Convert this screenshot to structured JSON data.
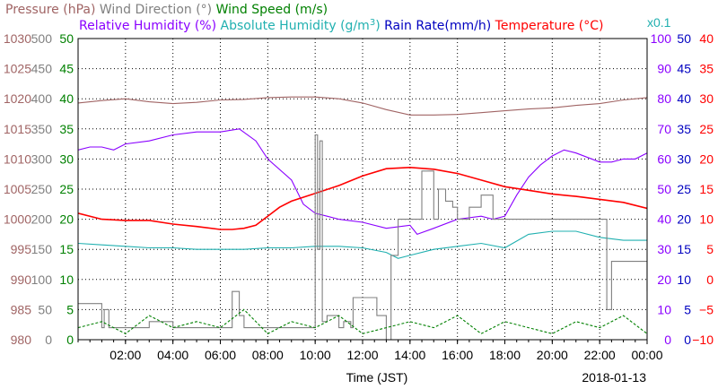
{
  "chart_data": {
    "type": "line",
    "date": "2018-01-13",
    "xlabel": "Time (JST)",
    "x_ticks": [
      "02:00",
      "04:00",
      "06:00",
      "08:00",
      "10:00",
      "12:00",
      "14:00",
      "16:00",
      "18:00",
      "20:00",
      "22:00",
      "00:00"
    ],
    "x_range_hours": [
      0,
      24
    ],
    "grid": true,
    "legend": [
      {
        "text": "Pressure (hPa)",
        "color": "#a06464"
      },
      {
        "text": "Wind Direction (°)",
        "color": "#808080"
      },
      {
        "text": "Wind Speed (m/s)",
        "color": "#008000"
      },
      {
        "text": "Relative Humidity (%)",
        "color": "#8a00ff"
      },
      {
        "text": "Absolute Humidity (g/m",
        "sup": "3",
        "tail": ")",
        "color": "#20b0b0"
      },
      {
        "text": "Rain Rate(mm/h)",
        "color": "#0000c0"
      },
      {
        "text": "Temperature (°C)",
        "color": "#ff0000"
      }
    ],
    "abs_humidity_scale_note": "x0.1",
    "axes": {
      "pressure": {
        "color": "#a06464",
        "min": 980,
        "max": 1030,
        "ticks": [
          1030,
          1025,
          1020,
          1015,
          1010,
          1005,
          1000,
          995,
          990,
          985,
          980
        ]
      },
      "wind_direction": {
        "color": "#808080",
        "min": 0,
        "max": 500,
        "ticks": [
          500,
          450,
          400,
          350,
          300,
          250,
          200,
          150,
          100,
          50,
          0
        ]
      },
      "wind_speed": {
        "color": "#008000",
        "min": 0,
        "max": 50,
        "ticks": [
          50,
          45,
          40,
          35,
          30,
          25,
          20,
          15,
          10,
          5,
          0
        ]
      },
      "relative_humidity": {
        "color": "#8a00ff",
        "min": 0,
        "max": 100,
        "ticks": [
          100,
          90,
          80,
          70,
          60,
          50,
          40,
          30,
          20,
          10,
          0
        ]
      },
      "rain_rate": {
        "color": "#0000c0",
        "min": 0,
        "max": 50,
        "ticks": [
          50,
          45,
          40,
          35,
          30,
          25,
          20,
          15,
          10,
          5,
          0
        ]
      },
      "temperature": {
        "color": "#ff0000",
        "min": -10,
        "max": 40,
        "ticks": [
          "40",
          "35",
          "30",
          "25",
          "20",
          "15",
          "10",
          "5",
          "0",
          "−5",
          "−10"
        ]
      }
    },
    "series": [
      {
        "name": "Pressure",
        "color": "#a06464",
        "axis": "pressure",
        "x": [
          0,
          1,
          2,
          3,
          4,
          5,
          6,
          7,
          8,
          9,
          10,
          11,
          12,
          13,
          14,
          15,
          16,
          17,
          18,
          19,
          20,
          21,
          22,
          23,
          24
        ],
        "y": [
          1019.3,
          1019.7,
          1020,
          1019.5,
          1019.2,
          1019.4,
          1019.8,
          1019.9,
          1020.2,
          1020.3,
          1020.3,
          1020,
          1019.3,
          1018.2,
          1017.3,
          1017.3,
          1017.4,
          1017.7,
          1018,
          1018.3,
          1018.5,
          1018.9,
          1019.2,
          1019.8,
          1020.2
        ]
      },
      {
        "name": "Relative Humidity",
        "color": "#8a00ff",
        "axis": "relative_humidity",
        "x": [
          0,
          0.5,
          1,
          1.5,
          2,
          3,
          4,
          5,
          6,
          6.8,
          7.5,
          8,
          9,
          9.5,
          10,
          10.5,
          11,
          12,
          13,
          14,
          14.3,
          15,
          16,
          17,
          17.5,
          18,
          18.5,
          19,
          19.5,
          20,
          20.5,
          21,
          22,
          22.5,
          23,
          23.5,
          24
        ],
        "y": [
          63,
          64,
          64,
          63,
          65,
          66,
          68,
          69,
          69,
          70,
          66,
          60,
          53,
          45,
          42,
          41,
          40,
          39,
          37,
          38,
          35,
          37,
          40,
          41,
          40,
          41,
          48,
          54,
          58,
          61,
          63,
          62,
          59,
          59,
          60,
          60,
          62
        ]
      },
      {
        "name": "Absolute Humidity",
        "color": "#20b0b0",
        "axis": "relative_humidity",
        "x": [
          0,
          1,
          2,
          3,
          4,
          5,
          6,
          7,
          8,
          9,
          10,
          11,
          12,
          13,
          13.5,
          14,
          15,
          16,
          17,
          18,
          19,
          20,
          21,
          22,
          23,
          24
        ],
        "y": [
          32,
          31.5,
          31,
          30.5,
          30.5,
          30,
          30,
          30,
          30.5,
          30.5,
          31,
          31,
          30.5,
          29,
          27,
          28,
          30,
          31,
          32,
          30.5,
          35,
          36,
          36,
          34,
          33,
          33
        ]
      },
      {
        "name": "Temperature",
        "color": "#ff0000",
        "axis": "temperature",
        "x": [
          0,
          1,
          2,
          3,
          4,
          5,
          6,
          6.5,
          7,
          7.5,
          8,
          8.5,
          9,
          10,
          11,
          12,
          13,
          14,
          15,
          16,
          17,
          18,
          19,
          20,
          21,
          22,
          23,
          24
        ],
        "y": [
          11,
          10,
          9.8,
          9.8,
          9.2,
          8.8,
          8.3,
          8.3,
          8.5,
          9,
          10.5,
          12,
          13,
          14.3,
          15.6,
          17.2,
          18.4,
          18.6,
          18.3,
          17.6,
          16.5,
          15.4,
          14.8,
          14.2,
          13.8,
          13.3,
          12.8,
          11.8
        ]
      },
      {
        "name": "Wind Direction",
        "color": "#808080",
        "axis": "wind_direction",
        "step": true,
        "x": [
          0,
          1,
          1.1,
          1.3,
          2,
          3,
          4,
          5,
          6,
          6.5,
          6.8,
          7,
          8,
          9,
          9.9,
          10,
          10.1,
          10.2,
          10.3,
          10.5,
          11,
          11,
          11.2,
          11.5,
          11.6,
          12,
          12.5,
          12.6,
          13,
          13.2,
          13.5,
          14,
          14.5,
          15,
          15.2,
          15.5,
          15.8,
          16,
          16.5,
          17,
          17.5,
          18,
          19,
          20,
          21,
          21.9,
          22,
          22.3,
          22.5,
          23,
          23.5,
          24
        ],
        "y": [
          60,
          20,
          50,
          20,
          20,
          30,
          20,
          20,
          20,
          80,
          40,
          20,
          20,
          20,
          20,
          340,
          150,
          330,
          30,
          40,
          20,
          20,
          30,
          20,
          70,
          70,
          70,
          40,
          0,
          140,
          200,
          200,
          280,
          200,
          250,
          230,
          220,
          200,
          220,
          240,
          200,
          200,
          200,
          200,
          200,
          200,
          200,
          50,
          130,
          130,
          130,
          80
        ]
      },
      {
        "name": "Wind Speed",
        "color": "#008000",
        "axis": "wind_speed",
        "dashed": true,
        "x": [
          0,
          1,
          2,
          3,
          4,
          5,
          6,
          7,
          8,
          9,
          10,
          11,
          12,
          13,
          14,
          15,
          16,
          17,
          18,
          19,
          20,
          21,
          22,
          23,
          24
        ],
        "y": [
          2,
          3,
          1,
          4,
          2,
          3,
          2,
          5,
          1,
          3,
          2,
          4,
          1,
          2,
          3,
          2,
          4,
          1,
          3,
          2,
          1,
          3,
          2,
          4,
          1
        ]
      },
      {
        "name": "Rain Rate",
        "color": "#0000c0",
        "axis": "rain_rate",
        "x": [
          0,
          24
        ],
        "y": [
          0,
          0
        ]
      }
    ]
  }
}
